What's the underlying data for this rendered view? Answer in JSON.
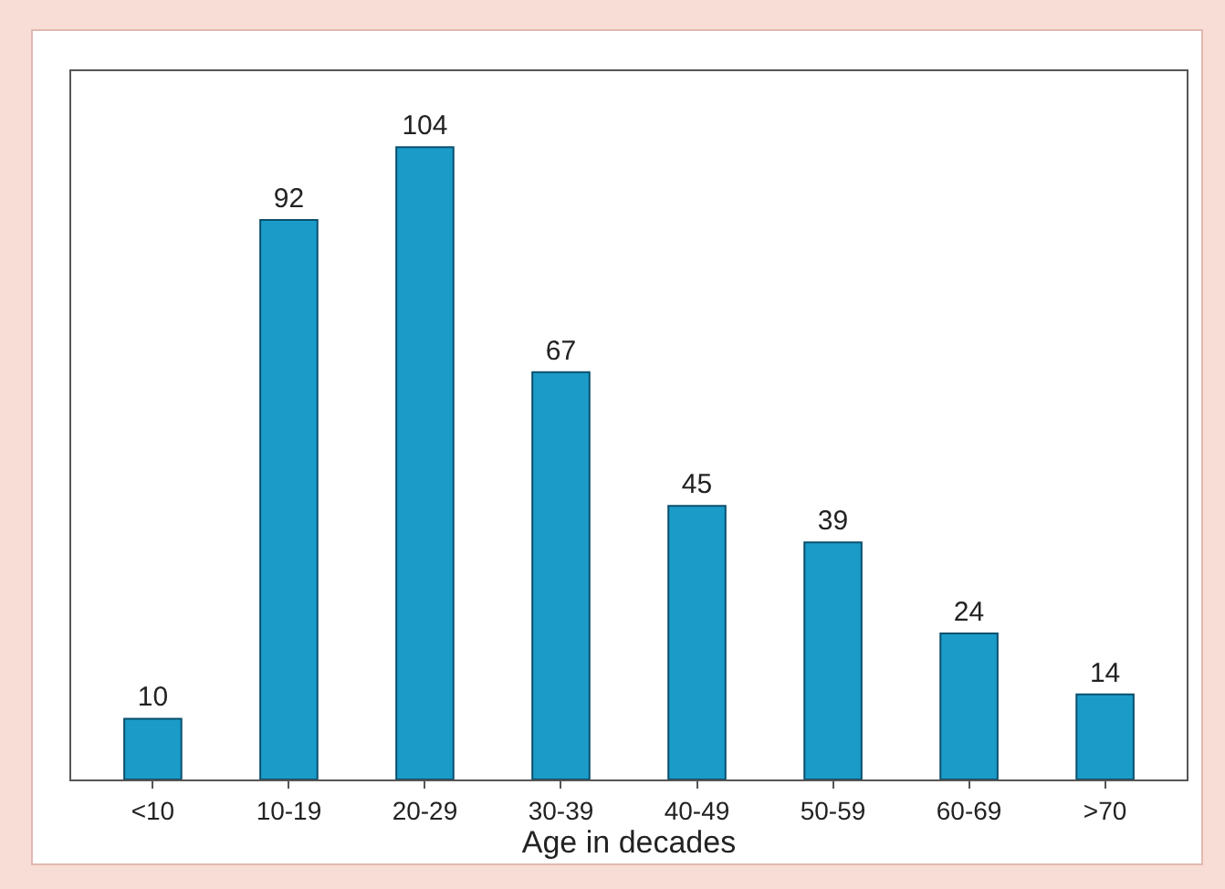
{
  "chart_data": {
    "type": "bar",
    "xlabel": "Age in decades",
    "categories": [
      "<10",
      "10-19",
      "20-29",
      "30-39",
      "40-49",
      "50-59",
      "60-69",
      ">70"
    ],
    "values": [
      10,
      92,
      104,
      67,
      45,
      39,
      24,
      14
    ],
    "color": "#1b9cc8",
    "data_labels": true,
    "grid": false,
    "legend": false
  }
}
